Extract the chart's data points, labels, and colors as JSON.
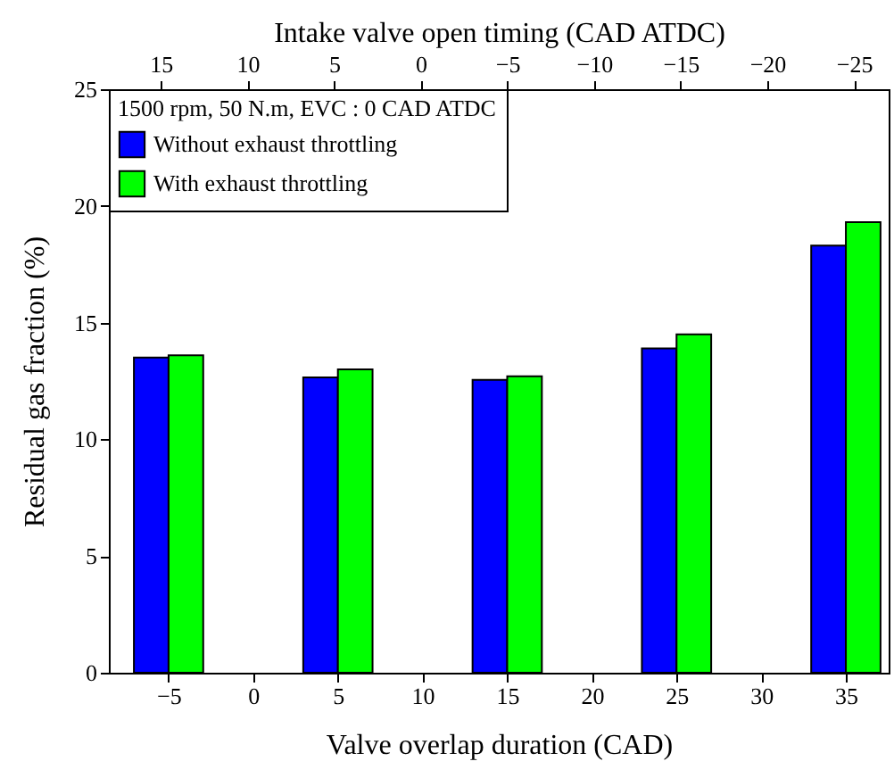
{
  "chart_data": {
    "type": "bar",
    "xlabel": "Valve overlap duration (CAD)",
    "ylabel": "Residual gas fraction (%)",
    "x2label": "Intake valve open timing (CAD ATDC)",
    "legend_title": "1500 rpm, 50 N.m, EVC : 0 CAD ATDC",
    "legend": "top left",
    "grid": false,
    "x": [
      -5,
      5,
      15,
      25,
      35
    ],
    "series": [
      {
        "name": "Without exhaust throttling",
        "color": "#0000ff",
        "values": [
          13.5,
          12.65,
          12.55,
          13.9,
          18.3
        ]
      },
      {
        "name": "With exhaust throttling",
        "color": "#00ff00",
        "values": [
          13.6,
          13.0,
          12.7,
          14.5,
          19.3
        ]
      }
    ],
    "xlim": [
      -8,
      37
    ],
    "xticks": [
      -5,
      0,
      5,
      10,
      15,
      20,
      25,
      30,
      35
    ],
    "x2lim": [
      18,
      -27
    ],
    "x2ticks": [
      15,
      10,
      5,
      0,
      -5,
      -10,
      -15,
      -20,
      -25
    ],
    "ylim": [
      0,
      25
    ],
    "yticks": [
      0,
      5,
      10,
      15,
      20,
      25
    ]
  }
}
